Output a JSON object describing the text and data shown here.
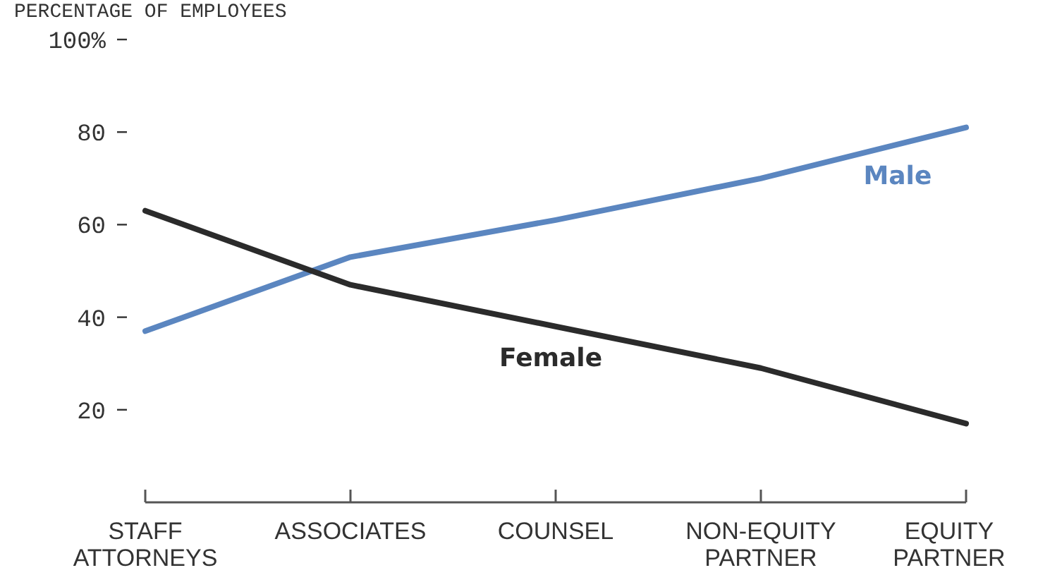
{
  "chart_data": {
    "type": "line",
    "ylabel": "PERCENTAGE OF EMPLOYEES",
    "categories": [
      "STAFF ATTORNEYS",
      "ASSOCIATES",
      "COUNSEL",
      "NON-EQUITY PARTNER",
      "EQUITY PARTNER"
    ],
    "series": [
      {
        "name": "Male",
        "color": "#5b86c0",
        "values": [
          37,
          53,
          61,
          70,
          81
        ]
      },
      {
        "name": "Female",
        "color": "#2b2b2b",
        "values": [
          63,
          47,
          38,
          29,
          17
        ]
      }
    ],
    "ylim": [
      0,
      100
    ],
    "yticks": [
      {
        "value": 20,
        "label": "20"
      },
      {
        "value": 40,
        "label": "40"
      },
      {
        "value": 60,
        "label": "60"
      },
      {
        "value": 80,
        "label": "80"
      },
      {
        "value": 100,
        "label": "100%"
      }
    ],
    "grid": false,
    "marker": "none",
    "line_style": "solid"
  }
}
